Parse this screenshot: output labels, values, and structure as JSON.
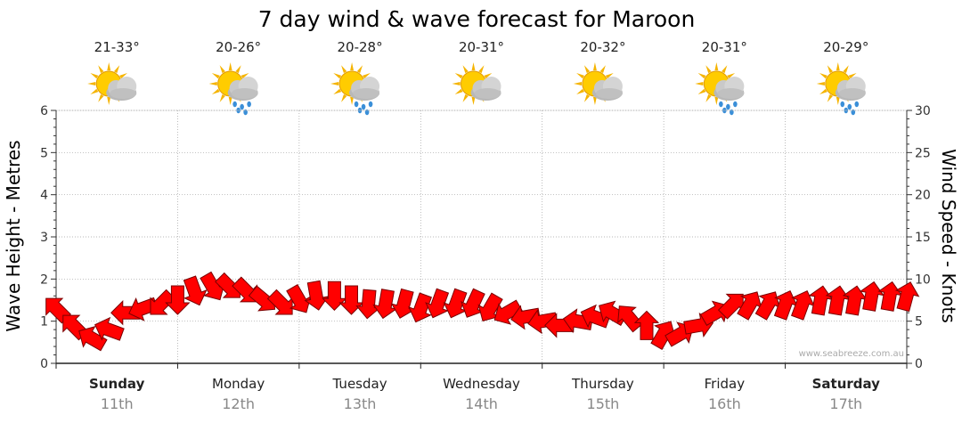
{
  "title": "7 day wind & wave forecast for Maroon",
  "y_left_label": "Wave Height - Metres",
  "y_right_label": "Wind Speed - Knots",
  "credit": "www.seabreeze.com.au",
  "colors": {
    "arrow_fill": "#ff0000",
    "arrow_stroke": "#7a0000",
    "grid": "#a0a0a0",
    "axis": "#333333",
    "date_text": "#888888"
  },
  "days": [
    {
      "name": "Sunday",
      "date": "11th",
      "temp": "21-33°",
      "icon": "sun-cloud-icon",
      "bold": true
    },
    {
      "name": "Monday",
      "date": "12th",
      "temp": "20-26°",
      "icon": "sun-rain-icon",
      "bold": false
    },
    {
      "name": "Tuesday",
      "date": "13th",
      "temp": "20-28°",
      "icon": "sun-rain-icon",
      "bold": false
    },
    {
      "name": "Wednesday",
      "date": "14th",
      "temp": "20-31°",
      "icon": "sun-cloud-icon",
      "bold": false
    },
    {
      "name": "Thursday",
      "date": "15th",
      "temp": "20-32°",
      "icon": "sun-cloud-icon",
      "bold": false
    },
    {
      "name": "Friday",
      "date": "16th",
      "temp": "20-31°",
      "icon": "sun-rain-icon",
      "bold": false
    },
    {
      "name": "Saturday",
      "date": "17th",
      "temp": "20-29°",
      "icon": "sun-rain-icon",
      "bold": true
    }
  ],
  "chart_data": {
    "type": "line",
    "title": "7 day wind & wave forecast for Maroon",
    "xlabel": "",
    "ylabel": "Wave Height - Metres",
    "ylabel_right": "Wind Speed - Knots",
    "ylim": [
      0,
      6
    ],
    "ylim_right": [
      0,
      30
    ],
    "yticks": [
      "0",
      "1",
      "2",
      "3",
      "4",
      "5",
      "6"
    ],
    "yticks_right": [
      "0",
      "5",
      "10",
      "15",
      "20",
      "25",
      "30"
    ],
    "grid": true,
    "x_unit": "day index (0 = start of Sunday 11th)",
    "series": [
      {
        "axis": "right",
        "x": [
          0.0,
          0.14,
          0.29,
          0.43,
          0.57,
          0.71,
          0.86,
          1.0,
          1.14,
          1.29,
          1.43,
          1.57,
          1.71,
          1.86,
          2.0,
          2.14,
          2.29,
          2.43,
          2.57,
          2.71,
          2.86,
          3.0,
          3.14,
          3.29,
          3.43,
          3.57,
          3.71,
          3.86,
          4.0,
          4.14,
          4.29,
          4.43,
          4.57,
          4.71,
          4.86,
          5.0,
          5.14,
          5.29,
          5.43,
          5.57,
          5.71,
          5.86,
          6.0,
          6.14,
          6.29,
          6.43,
          6.57,
          6.71,
          6.86,
          7.0
        ],
        "values": [
          6.5,
          4.5,
          3.0,
          4.0,
          6.0,
          6.5,
          7.0,
          7.5,
          8.5,
          9.0,
          9.0,
          8.5,
          7.5,
          7.0,
          7.5,
          8.0,
          8.0,
          7.5,
          7.0,
          7.0,
          7.0,
          6.5,
          7.0,
          7.0,
          7.0,
          6.5,
          6.0,
          5.5,
          5.0,
          4.5,
          5.0,
          5.5,
          6.0,
          5.5,
          4.5,
          3.5,
          3.5,
          4.5,
          6.0,
          7.0,
          7.0,
          7.0,
          7.0,
          7.0,
          7.5,
          7.5,
          7.5,
          8.0,
          8.0,
          8.0
        ],
        "direction_deg": [
          225,
          225,
          210,
          200,
          180,
          160,
          135,
          90,
          70,
          60,
          45,
          45,
          40,
          45,
          60,
          80,
          90,
          90,
          95,
          100,
          105,
          110,
          110,
          110,
          115,
          120,
          150,
          170,
          170,
          180,
          190,
          200,
          210,
          230,
          270,
          300,
          330,
          350,
          330,
          315,
          300,
          300,
          290,
          290,
          280,
          280,
          280,
          280,
          280,
          285
        ]
      }
    ]
  }
}
